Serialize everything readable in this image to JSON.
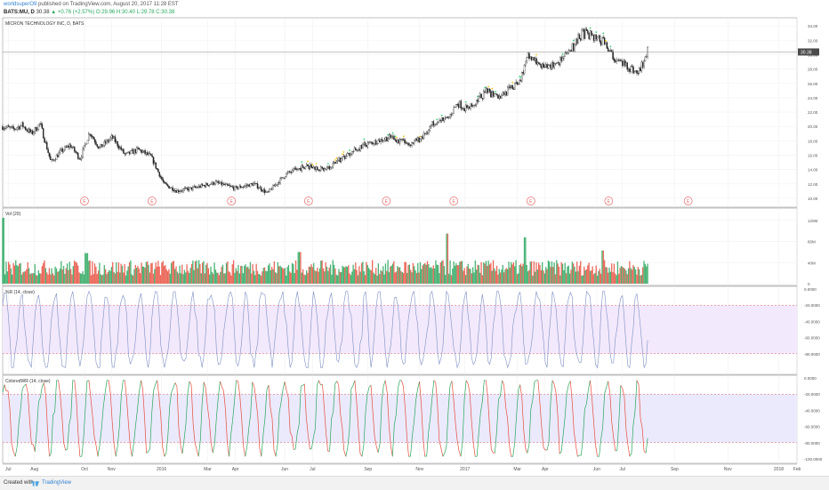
{
  "header": {
    "publisher_user": "worldsuperO9",
    "publisher_text": " published on TradingView.com, August 20, 2017 11:28 EST",
    "symbol": "BATS:MU, D",
    "last_price": "30.38",
    "change_text": "▲ +0.76 (+2.57%)",
    "ohlc_text": "O:29.96 H:30.40 L:29.78 C:30.38"
  },
  "colors": {
    "up": "#26a65b",
    "down": "#e74c3c",
    "pr_line": "#7d8fc4",
    "band_pr": "#f3e9fc",
    "band_cpr": "#ebeafc",
    "level_line": "#d7575b",
    "price_tag": "#4a4a4a",
    "earnings": "#e46a6a"
  },
  "footer": {
    "created_with": "Created with",
    "brand": "TradingView"
  },
  "chart_data": [
    {
      "type": "candlestick",
      "title": "MICRON TECHNOLOGY INC, D, BATS",
      "last_price_label": "30.38",
      "y_ticks": [
        "34.00",
        "32.00",
        "30.00",
        "28.00",
        "26.00",
        "24.00",
        "22.00",
        "20.00",
        "18.00",
        "16.00",
        "14.00",
        "12.00",
        "10.00"
      ],
      "ylim": [
        9.5,
        34.4
      ],
      "x_ticks": [
        "Jul",
        "Aug",
        "Oct",
        "Nov",
        "2016",
        "Mar",
        "Apr",
        "Jun",
        "Jul",
        "Sep",
        "Nov",
        "2017",
        "Mar",
        "Apr",
        "Jun",
        "Jul",
        "Sep",
        "Nov",
        "2018",
        "Feb"
      ],
      "earnings_marker": "E",
      "close_path": [
        {
          "t": 0,
          "v": 20.0
        },
        {
          "t": 0.016,
          "v": 19.6
        },
        {
          "t": 0.03,
          "v": 20.2
        },
        {
          "t": 0.045,
          "v": 19.0
        },
        {
          "t": 0.058,
          "v": 20.4
        },
        {
          "t": 0.075,
          "v": 15.0
        },
        {
          "t": 0.09,
          "v": 16.5
        },
        {
          "t": 0.105,
          "v": 17.4
        },
        {
          "t": 0.12,
          "v": 15.5
        },
        {
          "t": 0.135,
          "v": 19.2
        },
        {
          "t": 0.15,
          "v": 17.0
        },
        {
          "t": 0.17,
          "v": 18.5
        },
        {
          "t": 0.19,
          "v": 16.0
        },
        {
          "t": 0.21,
          "v": 16.8
        },
        {
          "t": 0.23,
          "v": 15.8
        },
        {
          "t": 0.25,
          "v": 12.0
        },
        {
          "t": 0.27,
          "v": 11.0
        },
        {
          "t": 0.3,
          "v": 11.5
        },
        {
          "t": 0.33,
          "v": 12.2
        },
        {
          "t": 0.36,
          "v": 11.4
        },
        {
          "t": 0.39,
          "v": 12.0
        },
        {
          "t": 0.41,
          "v": 10.7
        },
        {
          "t": 0.44,
          "v": 13.4
        },
        {
          "t": 0.47,
          "v": 14.5
        },
        {
          "t": 0.5,
          "v": 14.0
        },
        {
          "t": 0.53,
          "v": 15.8
        },
        {
          "t": 0.56,
          "v": 17.4
        },
        {
          "t": 0.6,
          "v": 18.5
        },
        {
          "t": 0.63,
          "v": 17.5
        },
        {
          "t": 0.65,
          "v": 18.4
        },
        {
          "t": 0.67,
          "v": 20.8
        },
        {
          "t": 0.69,
          "v": 21.0
        },
        {
          "t": 0.705,
          "v": 23.3
        },
        {
          "t": 0.72,
          "v": 22.4
        },
        {
          "t": 0.75,
          "v": 24.8
        },
        {
          "t": 0.77,
          "v": 24.2
        },
        {
          "t": 0.8,
          "v": 26.0
        },
        {
          "t": 0.815,
          "v": 29.8
        },
        {
          "t": 0.84,
          "v": 28.0
        },
        {
          "t": 0.87,
          "v": 29.5
        },
        {
          "t": 0.9,
          "v": 33.0
        },
        {
          "t": 0.93,
          "v": 32.0
        },
        {
          "t": 0.95,
          "v": 29.3
        },
        {
          "t": 0.97,
          "v": 28.4
        },
        {
          "t": 0.985,
          "v": 27.3
        },
        {
          "t": 1.0,
          "v": 30.38
        }
      ]
    },
    {
      "type": "bar",
      "title": "Vol (20)",
      "y_ticks": [
        "120M",
        "80M",
        "40M",
        "0"
      ],
      "ylim": [
        0,
        140
      ],
      "unit": "M",
      "typical_range": [
        15,
        45
      ],
      "spikes": [
        {
          "t": 0.0,
          "v": 125
        },
        {
          "t": 0.13,
          "v": 58
        },
        {
          "t": 0.46,
          "v": 60
        },
        {
          "t": 0.69,
          "v": 95
        },
        {
          "t": 0.81,
          "v": 88
        },
        {
          "t": 0.93,
          "v": 63
        }
      ]
    },
    {
      "type": "line",
      "title": "%R (14, close)",
      "y_ticks": [
        "0.0000",
        "-20.0000",
        "-40.0000",
        "-60.0000",
        "-80.0000"
      ],
      "ylim": [
        -100,
        0
      ],
      "levels": [
        -20,
        -80
      ],
      "cycles": 37,
      "range": [
        -97,
        -3
      ]
    },
    {
      "type": "line",
      "title": "ColoredWR (14, close)",
      "y_ticks": [
        "0.0000",
        "-20.0000",
        "-40.0000",
        "-60.0000",
        "-80.0000",
        "-100.0000"
      ],
      "ylim": [
        -100,
        0
      ],
      "levels": [
        -20,
        -80
      ],
      "series_colors": [
        "#26a65b",
        "#e74c3c"
      ],
      "cycles": 37,
      "range": [
        -97,
        -3
      ]
    }
  ]
}
